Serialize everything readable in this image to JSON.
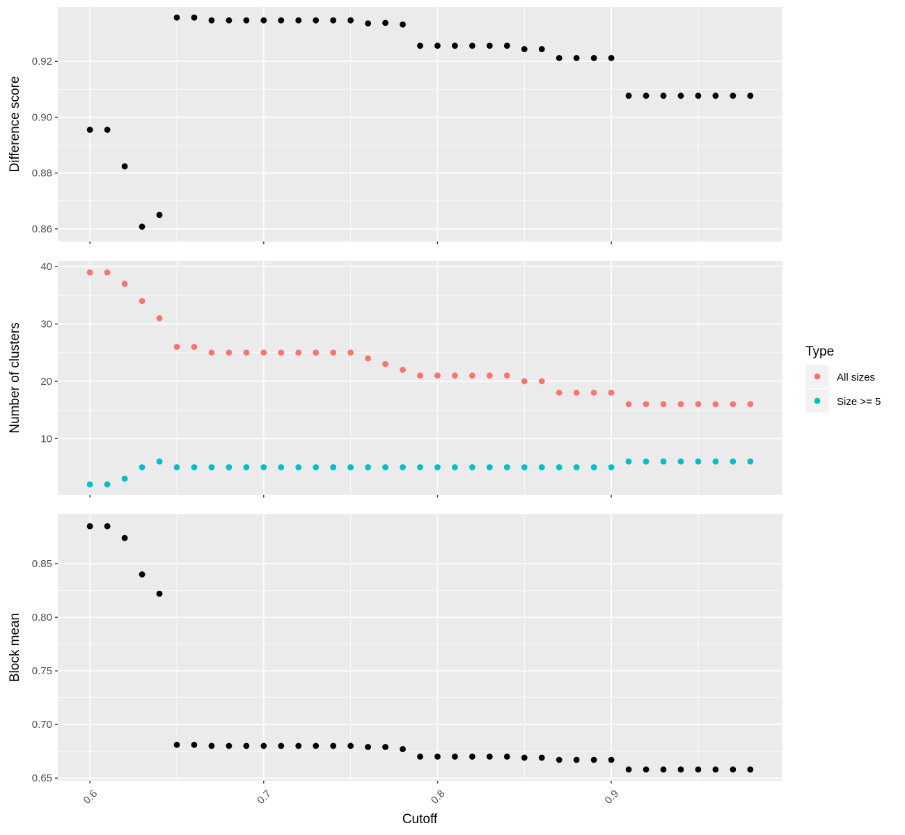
{
  "chart_data": [
    {
      "type": "scatter",
      "panel": "difference-score",
      "ylabel": "Difference score",
      "ylim": [
        0.8555,
        0.9395
      ],
      "yticks": [
        0.86,
        0.88,
        0.9,
        0.92
      ],
      "ytick_labels": [
        "0.86",
        "0.88",
        "0.90",
        "0.92"
      ],
      "grid": true,
      "series": [
        {
          "color": "#000000",
          "x": [
            0.6,
            0.61,
            0.62,
            0.63,
            0.64,
            0.65,
            0.66,
            0.67,
            0.68,
            0.69,
            0.7,
            0.71,
            0.72,
            0.73,
            0.74,
            0.75,
            0.76,
            0.77,
            0.78,
            0.79,
            0.8,
            0.81,
            0.82,
            0.83,
            0.84,
            0.85,
            0.86,
            0.87,
            0.88,
            0.89,
            0.9,
            0.91,
            0.92,
            0.93,
            0.94,
            0.95,
            0.96,
            0.97,
            0.98
          ],
          "values": [
            0.8955,
            0.8955,
            0.8824,
            0.8608,
            0.865,
            0.9357,
            0.9357,
            0.9347,
            0.9347,
            0.9347,
            0.9347,
            0.9347,
            0.9347,
            0.9347,
            0.9347,
            0.9347,
            0.9336,
            0.9338,
            0.9332,
            0.9256,
            0.9256,
            0.9256,
            0.9256,
            0.9256,
            0.9256,
            0.9244,
            0.9244,
            0.9212,
            0.9212,
            0.9212,
            0.9212,
            0.9077,
            0.9077,
            0.9077,
            0.9077,
            0.9077,
            0.9077,
            0.9077,
            0.9077
          ]
        }
      ]
    },
    {
      "type": "scatter",
      "panel": "number-of-clusters",
      "ylabel": "Number of clusters",
      "ylim": [
        0.2,
        41
      ],
      "yticks": [
        10,
        20,
        30,
        40
      ],
      "ytick_labels": [
        "10",
        "20",
        "30",
        "40"
      ],
      "grid": true,
      "legend": {
        "title": "Type",
        "placement": "right"
      },
      "series": [
        {
          "name": "All sizes",
          "color": "#F8766D",
          "x": [
            0.6,
            0.61,
            0.62,
            0.63,
            0.64,
            0.65,
            0.66,
            0.67,
            0.68,
            0.69,
            0.7,
            0.71,
            0.72,
            0.73,
            0.74,
            0.75,
            0.76,
            0.77,
            0.78,
            0.79,
            0.8,
            0.81,
            0.82,
            0.83,
            0.84,
            0.85,
            0.86,
            0.87,
            0.88,
            0.89,
            0.9,
            0.91,
            0.92,
            0.93,
            0.94,
            0.95,
            0.96,
            0.97,
            0.98
          ],
          "values": [
            39,
            39,
            37,
            34,
            31,
            26,
            26,
            25,
            25,
            25,
            25,
            25,
            25,
            25,
            25,
            25,
            24,
            23,
            22,
            21,
            21,
            21,
            21,
            21,
            21,
            20,
            20,
            18,
            18,
            18,
            18,
            16,
            16,
            16,
            16,
            16,
            16,
            16,
            16
          ]
        },
        {
          "name": "Size >= 5",
          "color": "#00BFC4",
          "x": [
            0.6,
            0.61,
            0.62,
            0.63,
            0.64,
            0.65,
            0.66,
            0.67,
            0.68,
            0.69,
            0.7,
            0.71,
            0.72,
            0.73,
            0.74,
            0.75,
            0.76,
            0.77,
            0.78,
            0.79,
            0.8,
            0.81,
            0.82,
            0.83,
            0.84,
            0.85,
            0.86,
            0.87,
            0.88,
            0.89,
            0.9,
            0.91,
            0.92,
            0.93,
            0.94,
            0.95,
            0.96,
            0.97,
            0.98
          ],
          "values": [
            2,
            2,
            3,
            5,
            6,
            5,
            5,
            5,
            5,
            5,
            5,
            5,
            5,
            5,
            5,
            5,
            5,
            5,
            5,
            5,
            5,
            5,
            5,
            5,
            5,
            5,
            5,
            5,
            5,
            5,
            5,
            6,
            6,
            6,
            6,
            6,
            6,
            6,
            6
          ]
        }
      ]
    },
    {
      "type": "scatter",
      "panel": "block-mean",
      "ylabel": "Block mean",
      "xlabel": "Cutoff",
      "xlim": [
        0.5815,
        0.9985
      ],
      "xticks": [
        0.6,
        0.7,
        0.8,
        0.9
      ],
      "xtick_labels": [
        "0.6",
        "0.7",
        "0.8",
        "0.9"
      ],
      "ylim": [
        0.6475,
        0.8962
      ],
      "yticks": [
        0.65,
        0.7,
        0.75,
        0.8,
        0.85
      ],
      "ytick_labels": [
        "0.65",
        "0.70",
        "0.75",
        "0.80",
        "0.85"
      ],
      "grid": true,
      "series": [
        {
          "color": "#000000",
          "x": [
            0.6,
            0.61,
            0.62,
            0.63,
            0.64,
            0.65,
            0.66,
            0.67,
            0.68,
            0.69,
            0.7,
            0.71,
            0.72,
            0.73,
            0.74,
            0.75,
            0.76,
            0.77,
            0.78,
            0.79,
            0.8,
            0.81,
            0.82,
            0.83,
            0.84,
            0.85,
            0.86,
            0.87,
            0.88,
            0.89,
            0.9,
            0.91,
            0.92,
            0.93,
            0.94,
            0.95,
            0.96,
            0.97,
            0.98
          ],
          "values": [
            0.885,
            0.885,
            0.874,
            0.84,
            0.822,
            0.681,
            0.681,
            0.68,
            0.68,
            0.68,
            0.68,
            0.68,
            0.68,
            0.68,
            0.68,
            0.68,
            0.679,
            0.679,
            0.677,
            0.67,
            0.67,
            0.67,
            0.67,
            0.67,
            0.67,
            0.669,
            0.669,
            0.667,
            0.667,
            0.667,
            0.667,
            0.658,
            0.658,
            0.658,
            0.658,
            0.658,
            0.658,
            0.658,
            0.658
          ]
        }
      ]
    }
  ]
}
